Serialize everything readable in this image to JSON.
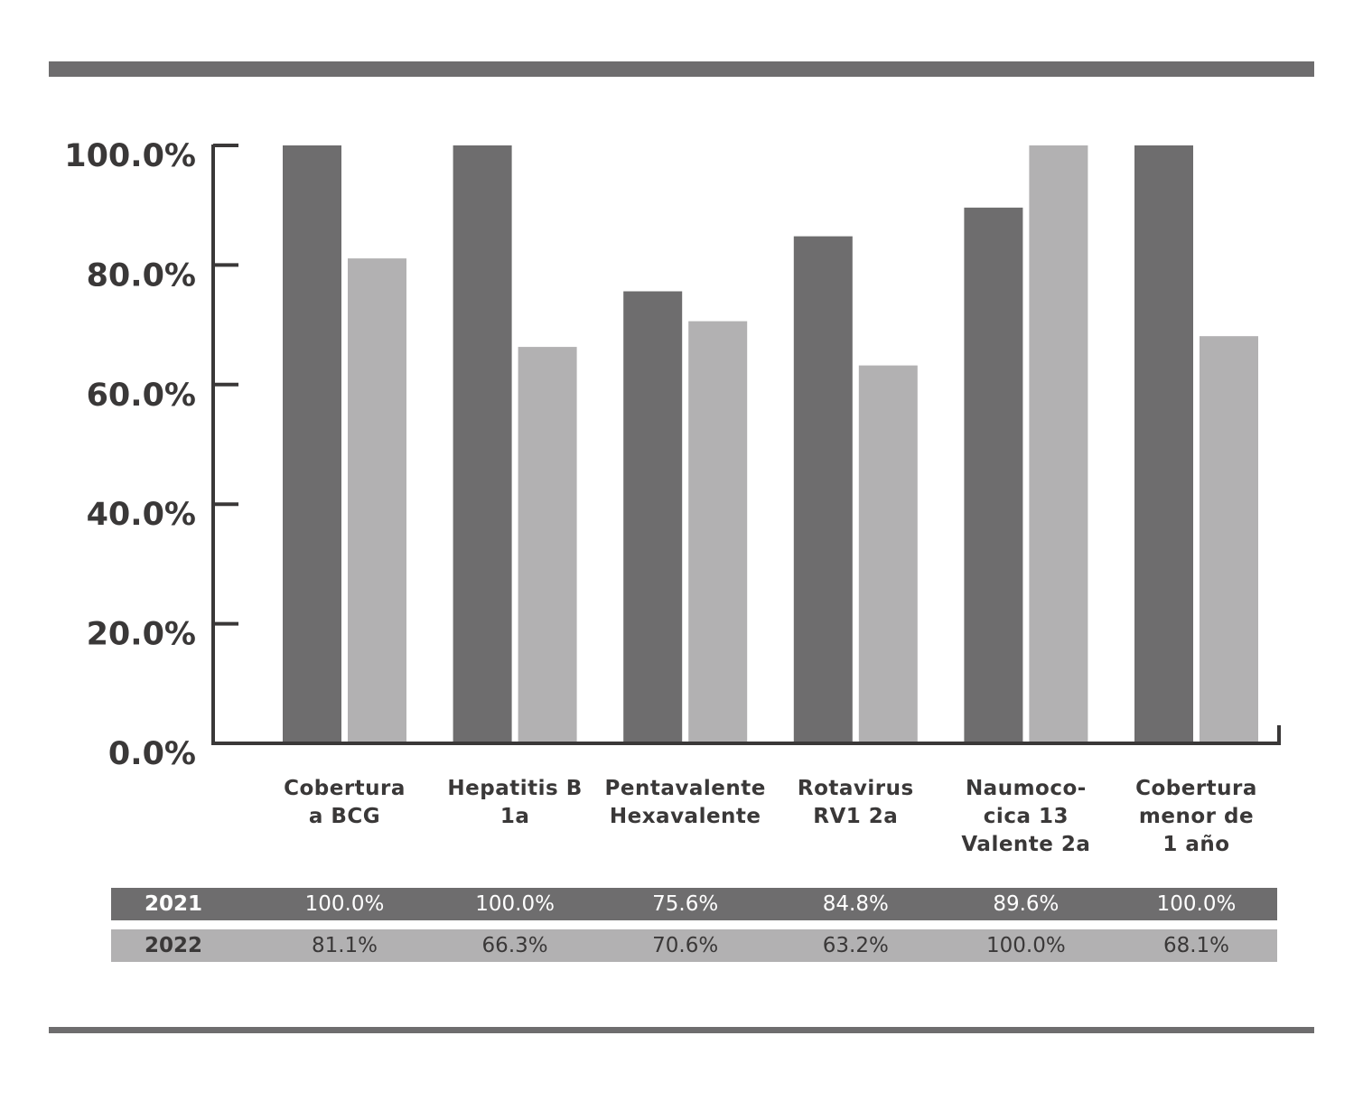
{
  "colors": {
    "s2021": "#6e6d6e",
    "s2022": "#b2b1b2",
    "axis": "#3a3838",
    "rule": "#6e6d6e"
  },
  "chart_data": {
    "type": "bar",
    "categories": [
      [
        "Cobertura",
        "a BCG"
      ],
      [
        "Hepatitis B",
        "1a"
      ],
      [
        "Pentavalente",
        "Hexavalente"
      ],
      [
        "Rotavirus",
        "RV1 2a"
      ],
      [
        "Naumoco-",
        "cica 13",
        "Valente 2a"
      ],
      [
        "Cobertura",
        "menor de",
        "1 año"
      ]
    ],
    "series": [
      {
        "name": "2021",
        "values": [
          100.0,
          100.0,
          75.6,
          84.8,
          89.6,
          100.0
        ]
      },
      {
        "name": "2022",
        "values": [
          81.1,
          66.3,
          70.6,
          63.2,
          100.0,
          68.1
        ]
      }
    ],
    "ylim": [
      0,
      100
    ],
    "yticks": [
      "0.0%",
      "20.0%",
      "40.0%",
      "60.0%",
      "80.0%",
      "100.0%"
    ],
    "grid": false
  },
  "table": {
    "rows": [
      {
        "label": "2021",
        "cells": [
          "100.0%",
          "100.0%",
          "75.6%",
          "84.8%",
          "89.6%",
          "100.0%"
        ]
      },
      {
        "label": "2022",
        "cells": [
          "81.1%",
          "66.3%",
          "70.6%",
          "63.2%",
          "100.0%",
          "68.1%"
        ]
      }
    ]
  }
}
